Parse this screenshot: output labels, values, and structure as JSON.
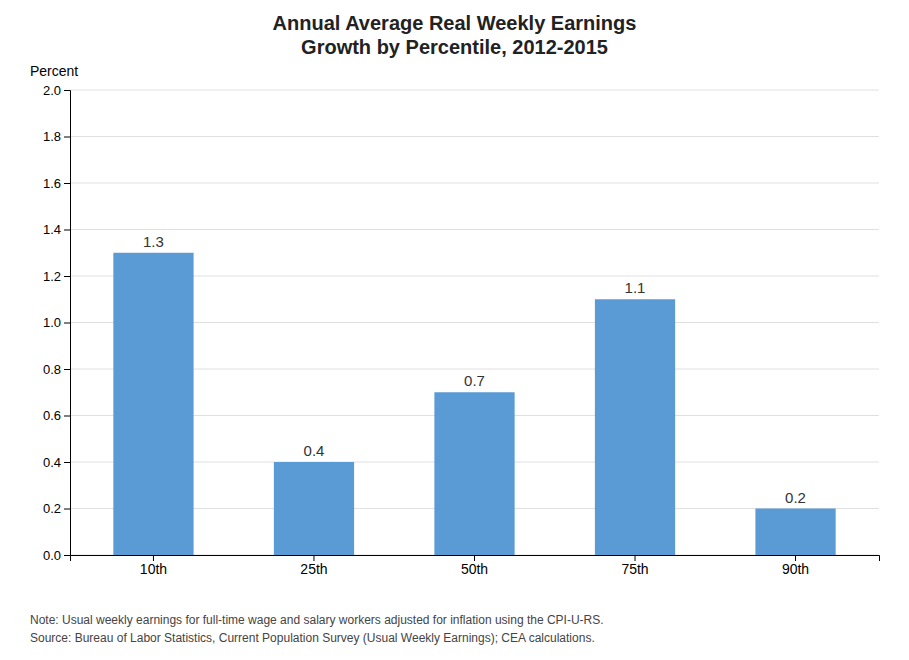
{
  "chart_data": {
    "type": "bar",
    "title": "Annual Average Real Weekly Earnings\nGrowth by Percentile, 2012-2015",
    "ylabel": "Percent",
    "categories": [
      "10th",
      "25th",
      "50th",
      "75th",
      "90th"
    ],
    "values": [
      1.3,
      0.4,
      0.7,
      1.1,
      0.2
    ],
    "color": "#5B9BD5",
    "ylim": [
      0,
      2.0
    ],
    "yticks": [
      {
        "value": 0.0,
        "label": "0.0"
      },
      0.2,
      0.4,
      0.6,
      0.8,
      {
        "value": 1.0,
        "label": "1.0"
      },
      1.2,
      1.4,
      1.6,
      1.8,
      {
        "value": 2.0,
        "label": "2.0"
      }
    ],
    "grid": true,
    "data_labels": true,
    "annotations": [
      "Note: Usual weekly earnings for full-time wage and salary workers adjusted for inflation using the CPI-U-RS.",
      "Source: Bureau of Labor Statistics, Current Population Survey (Usual Weekly Earnings); CEA calculations."
    ]
  }
}
